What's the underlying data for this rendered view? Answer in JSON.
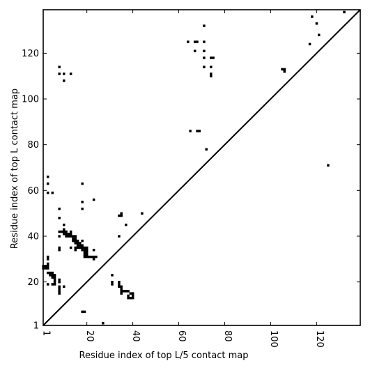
{
  "chart_data": {
    "type": "scatter",
    "title": "",
    "xlabel": "Residue index of top L/5 contact map",
    "ylabel": "Residue index of top L contact map",
    "xlim": [
      1,
      139
    ],
    "ylim": [
      1,
      139
    ],
    "xticks": [
      1,
      20,
      40,
      60,
      80,
      100,
      120
    ],
    "yticks": [
      1,
      20,
      40,
      60,
      80,
      100,
      120
    ],
    "grid": false,
    "diagonal": true,
    "marker_color": "#000000",
    "series": [
      {
        "points": [
          [
            1,
            26
          ],
          [
            2,
            26
          ],
          [
            3,
            26
          ],
          [
            1,
            27
          ],
          [
            2,
            27
          ],
          [
            3,
            27
          ],
          [
            3,
            28
          ],
          [
            3,
            24
          ],
          [
            4,
            24
          ],
          [
            4,
            23
          ],
          [
            5,
            23
          ],
          [
            5,
            22
          ],
          [
            6,
            22
          ],
          [
            6,
            21
          ],
          [
            6,
            23
          ],
          [
            5,
            24
          ],
          [
            3,
            30
          ],
          [
            3,
            31
          ],
          [
            3,
            19
          ],
          [
            5,
            19
          ],
          [
            6,
            20
          ],
          [
            6,
            19
          ],
          [
            8,
            15
          ],
          [
            8,
            16
          ],
          [
            8,
            17
          ],
          [
            8,
            18
          ],
          [
            8,
            20
          ],
          [
            8,
            21
          ],
          [
            10,
            18
          ],
          [
            3,
            59
          ],
          [
            3,
            63
          ],
          [
            3,
            66
          ],
          [
            5,
            59
          ],
          [
            8,
            34
          ],
          [
            8,
            35
          ],
          [
            8,
            40
          ],
          [
            8,
            42
          ],
          [
            8,
            48
          ],
          [
            8,
            52
          ],
          [
            9,
            42
          ],
          [
            10,
            41
          ],
          [
            10,
            42
          ],
          [
            10,
            43
          ],
          [
            10,
            45
          ],
          [
            11,
            40
          ],
          [
            11,
            41
          ],
          [
            11,
            42
          ],
          [
            12,
            40
          ],
          [
            12,
            41
          ],
          [
            13,
            35
          ],
          [
            13,
            40
          ],
          [
            13,
            41
          ],
          [
            13,
            42
          ],
          [
            14,
            38
          ],
          [
            14,
            39
          ],
          [
            14,
            40
          ],
          [
            15,
            37
          ],
          [
            15,
            38
          ],
          [
            15,
            39
          ],
          [
            15,
            40
          ],
          [
            15,
            34
          ],
          [
            15,
            35
          ],
          [
            16,
            35
          ],
          [
            16,
            36
          ],
          [
            16,
            37
          ],
          [
            16,
            38
          ],
          [
            17,
            35
          ],
          [
            17,
            36
          ],
          [
            17,
            37
          ],
          [
            18,
            34
          ],
          [
            18,
            35
          ],
          [
            18,
            36
          ],
          [
            18,
            38
          ],
          [
            19,
            31
          ],
          [
            19,
            32
          ],
          [
            19,
            33
          ],
          [
            19,
            34
          ],
          [
            19,
            35
          ],
          [
            20,
            31
          ],
          [
            20,
            32
          ],
          [
            20,
            33
          ],
          [
            20,
            34
          ],
          [
            20,
            35
          ],
          [
            21,
            31
          ],
          [
            22,
            31
          ],
          [
            23,
            31
          ],
          [
            23,
            30
          ],
          [
            23,
            34
          ],
          [
            24,
            31
          ],
          [
            18,
            52
          ],
          [
            18,
            55
          ],
          [
            18,
            63
          ],
          [
            23,
            56
          ],
          [
            18,
            7
          ],
          [
            19,
            7
          ],
          [
            27,
            2
          ],
          [
            31,
            19
          ],
          [
            31,
            20
          ],
          [
            31,
            23
          ],
          [
            34,
            18
          ],
          [
            34,
            19
          ],
          [
            34,
            20
          ],
          [
            35,
            15
          ],
          [
            35,
            16
          ],
          [
            35,
            17
          ],
          [
            35,
            18
          ],
          [
            36,
            16
          ],
          [
            37,
            16
          ],
          [
            38,
            16
          ],
          [
            38,
            14
          ],
          [
            38,
            13
          ],
          [
            39,
            13
          ],
          [
            39,
            15
          ],
          [
            40,
            13
          ],
          [
            40,
            14
          ],
          [
            40,
            15
          ],
          [
            34,
            40
          ],
          [
            34,
            49
          ],
          [
            35,
            49
          ],
          [
            35,
            50
          ],
          [
            37,
            45
          ],
          [
            44,
            50
          ],
          [
            8,
            111
          ],
          [
            8,
            114
          ],
          [
            10,
            108
          ],
          [
            10,
            111
          ],
          [
            13,
            111
          ],
          [
            64,
            125
          ],
          [
            65,
            86
          ],
          [
            67,
            121
          ],
          [
            67,
            125
          ],
          [
            68,
            86
          ],
          [
            68,
            125
          ],
          [
            69,
            86
          ],
          [
            71,
            114
          ],
          [
            71,
            118
          ],
          [
            71,
            121
          ],
          [
            71,
            125
          ],
          [
            71,
            132
          ],
          [
            72,
            78
          ],
          [
            74,
            110
          ],
          [
            74,
            111
          ],
          [
            74,
            114
          ],
          [
            74,
            118
          ],
          [
            75,
            118
          ],
          [
            105,
            113
          ],
          [
            106,
            112
          ],
          [
            106,
            113
          ],
          [
            117,
            124
          ],
          [
            118,
            136
          ],
          [
            120,
            133
          ],
          [
            121,
            128
          ],
          [
            125,
            71
          ],
          [
            132,
            138
          ]
        ]
      }
    ]
  }
}
